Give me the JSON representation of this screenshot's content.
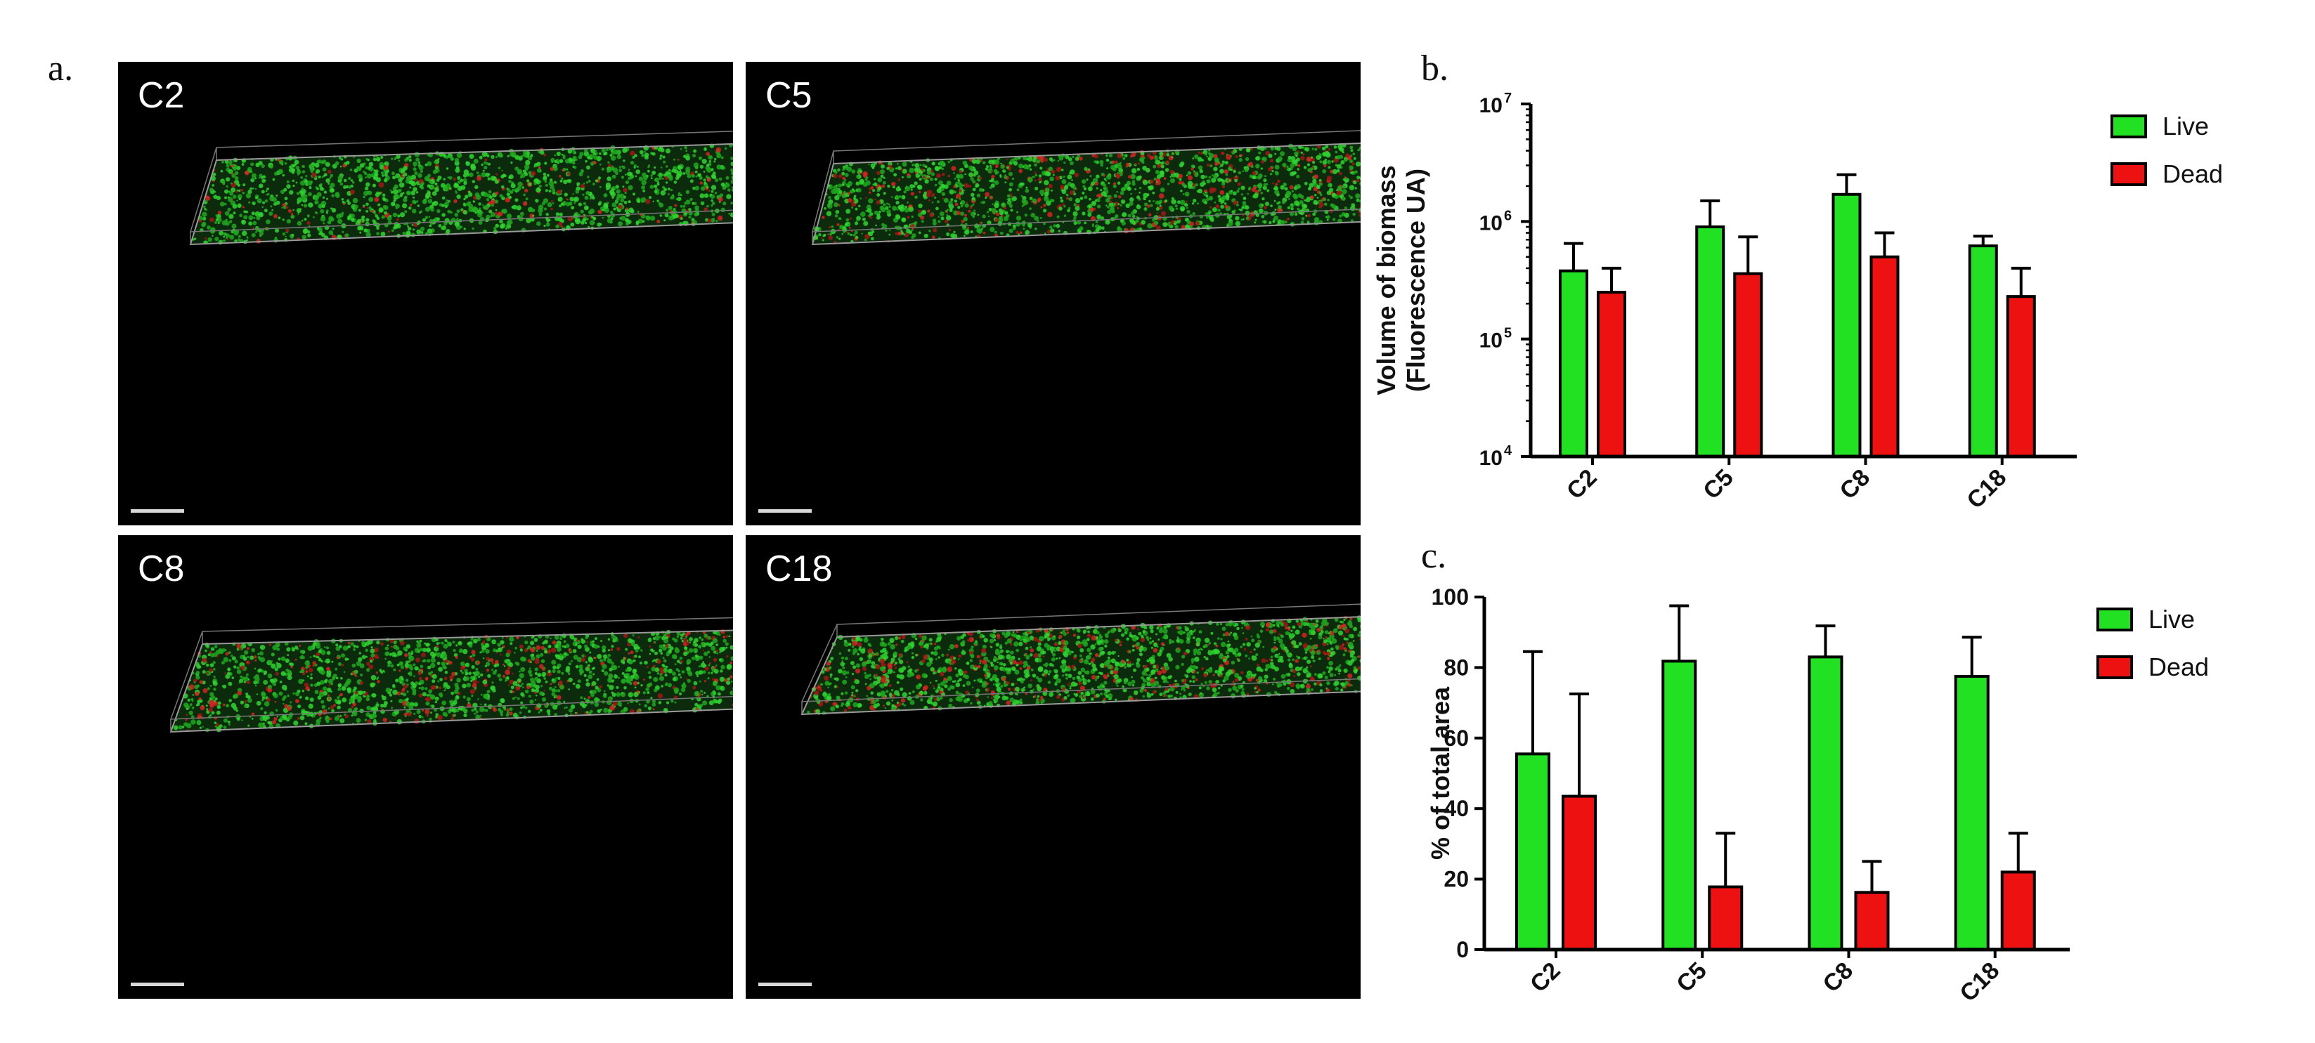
{
  "panels": {
    "a": "a.",
    "b": "b.",
    "c": "c."
  },
  "micrographs": [
    {
      "label": "C2",
      "live_fraction": 0.92
    },
    {
      "label": "C5",
      "live_fraction": 0.8
    },
    {
      "label": "C8",
      "live_fraction": 0.82
    },
    {
      "label": "C18",
      "live_fraction": 0.8
    }
  ],
  "colors": {
    "live": "#22e022",
    "dead": "#ee1111",
    "micro_bg": "#000000"
  },
  "chart_data": [
    {
      "id": "b",
      "type": "bar",
      "categories": [
        "C2",
        "C5",
        "C8",
        "C18"
      ],
      "series": [
        {
          "name": "Live",
          "values": [
            380000,
            900000,
            1700000,
            620000
          ],
          "error": [
            650000,
            1500000,
            2500000,
            750000
          ]
        },
        {
          "name": "Dead",
          "values": [
            250000,
            360000,
            500000,
            230000
          ],
          "error": [
            400000,
            740000,
            800000,
            400000
          ]
        }
      ],
      "ylabel_lines": [
        "Volume of biomass",
        "(Fluorescence UA)"
      ],
      "yscale": "log",
      "ylim": [
        10000,
        10000000
      ],
      "yticks": [
        {
          "base": "10",
          "exp": "4",
          "value": 10000
        },
        {
          "base": "10",
          "exp": "5",
          "value": 100000
        },
        {
          "base": "10",
          "exp": "6",
          "value": 1000000
        },
        {
          "base": "10",
          "exp": "7",
          "value": 10000000
        }
      ],
      "legend_position": "top-right",
      "grid": false
    },
    {
      "id": "c",
      "type": "bar",
      "categories": [
        "C2",
        "C5",
        "C8",
        "C18"
      ],
      "series": [
        {
          "name": "Live",
          "values": [
            55.5,
            81.8,
            83,
            77.5
          ],
          "error": [
            84.5,
            97.5,
            91.8,
            88.6
          ]
        },
        {
          "name": "Dead",
          "values": [
            43.5,
            17.8,
            16.2,
            22
          ],
          "error": [
            72.5,
            33,
            25,
            33
          ]
        }
      ],
      "ylabel": "% of total area",
      "yscale": "linear",
      "ylim": [
        0,
        100
      ],
      "yticks": [
        "0",
        "20",
        "40",
        "60",
        "80",
        "100"
      ],
      "legend_position": "top-right",
      "grid": false
    }
  ]
}
